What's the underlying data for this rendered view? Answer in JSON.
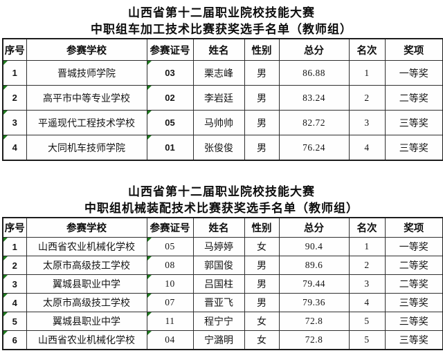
{
  "meta": {
    "flag_color": "#1e7b1e",
    "flag_note": "green-corner-indicator"
  },
  "tables": [
    {
      "title_line1": "山西省第十二届职业院校技能大赛",
      "title_line2": "中职组车加工技术比赛获奖选手名单（教师组）",
      "columns": [
        "序号",
        "参赛学校",
        "参赛证号",
        "姓名",
        "性别",
        "总分",
        "名次",
        "奖项"
      ],
      "rows": [
        [
          "1",
          "晋城技师学院",
          "03",
          "栗志峰",
          "男",
          "86.88",
          "1",
          "一等奖"
        ],
        [
          "2",
          "高平市中等专业学校",
          "02",
          "李岩廷",
          "男",
          "83.24",
          "2",
          "二等奖"
        ],
        [
          "3",
          "平遥现代工程技术学校",
          "05",
          "马帅帅",
          "男",
          "82.72",
          "3",
          "三等奖"
        ],
        [
          "4",
          "大同机车技师学院",
          "01",
          "张俊俊",
          "男",
          "76.24",
          "4",
          "三等奖"
        ]
      ]
    },
    {
      "title_line1": "山西省第十二届职业院校技能大赛",
      "title_line2": "中职组机械装配技术比赛获奖选手名单（教师组）",
      "columns": [
        "序号",
        "参赛学校",
        "参赛证号",
        "姓名",
        "性别",
        "总分",
        "名次",
        "奖项"
      ],
      "rows": [
        [
          "1",
          "山西省农业机械化学校",
          "05",
          "马婷婷",
          "女",
          "90.4",
          "1",
          "一等奖"
        ],
        [
          "2",
          "太原市高级技工学校",
          "08",
          "郭国俊",
          "男",
          "89.6",
          "2",
          "二等奖"
        ],
        [
          "3",
          "翼城县职业中学",
          "10",
          "吕国柱",
          "男",
          "79.44",
          "3",
          "二等奖"
        ],
        [
          "4",
          "太原市高级技工学校",
          "07",
          "晋亚飞",
          "男",
          "79.36",
          "4",
          "三等奖"
        ],
        [
          "5",
          "翼城县职业中学",
          "11",
          "程宁宁",
          "女",
          "72.8",
          "5",
          "三等奖"
        ],
        [
          "6",
          "山西省农业机械化学校",
          "04",
          "宁潞明",
          "女",
          "72.8",
          "5",
          "三等奖"
        ]
      ]
    }
  ]
}
